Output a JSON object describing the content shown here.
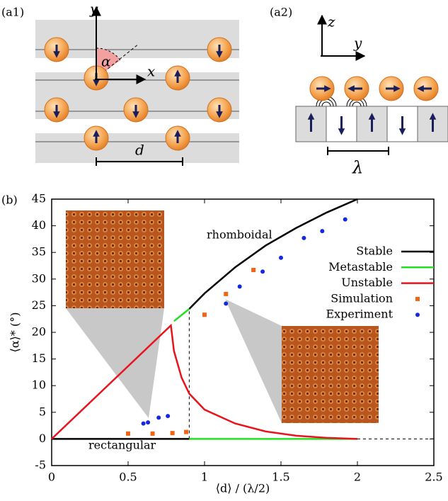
{
  "panels": {
    "a1": {
      "label": "(a1)",
      "y_axis": "y",
      "x_axis": "x",
      "angle": "α",
      "spacing": "d"
    },
    "a2": {
      "label": "(a2)",
      "z_axis": "z",
      "y_axis": "y",
      "wavelength": "λ"
    }
  },
  "chart_data": {
    "type": "line",
    "panel_label": "(b)",
    "x_label": "⟨d⟩ / (λ/2)",
    "y_label": "⟨α⟩* (°)",
    "xlim": [
      0,
      2.5
    ],
    "xticks": [
      0,
      0.5,
      1,
      1.5,
      2,
      2.5
    ],
    "ylim": [
      -5,
      45
    ],
    "yticks": [
      -5,
      0,
      5,
      10,
      15,
      20,
      25,
      30,
      35,
      40,
      45
    ],
    "annotations": [
      "rhomboidal",
      "rectangular"
    ],
    "legend": "upper right",
    "series": [
      {
        "name": "Stable",
        "color": "#000000",
        "mode": "line",
        "x": [
          0,
          0.9,
          0.9,
          0.9,
          1.0,
          1.2,
          1.4,
          1.6,
          1.8,
          2.0
        ],
        "values": [
          0,
          0,
          null,
          24.4,
          27.3,
          32.2,
          36.3,
          39.6,
          42.5,
          45
        ]
      },
      {
        "name": "Metastable",
        "color": "#22e022",
        "mode": "line",
        "x": [
          0.8,
          0.9,
          0.9,
          0.9,
          2.0
        ],
        "values": [
          22.1,
          24.4,
          null,
          0,
          0
        ]
      },
      {
        "name": "Unstable",
        "color": "#e8141c",
        "mode": "line",
        "x": [
          0,
          0.78,
          0.8,
          0.85,
          0.9,
          1.0,
          1.2,
          1.4,
          1.6,
          1.8,
          2.0
        ],
        "values": [
          0,
          21.3,
          16.5,
          11.5,
          8.5,
          5.5,
          2.9,
          1.4,
          0.6,
          0.2,
          0
        ]
      },
      {
        "name": "Simulation",
        "color": "#f06414",
        "mode": "square",
        "x": [
          0.5,
          0.66,
          0.79,
          0.88,
          1.0,
          1.14,
          1.32
        ],
        "values": [
          1,
          1,
          1.1,
          1.3,
          23.3,
          27.2,
          31.7
        ]
      },
      {
        "name": "Experiment",
        "color": "#1428e0",
        "mode": "dot",
        "x": [
          0.6,
          0.63,
          0.7,
          0.76,
          1.14,
          1.23,
          1.38,
          1.5,
          1.65,
          1.77,
          1.92
        ],
        "values": [
          2.9,
          3.1,
          4,
          4.3,
          25.4,
          28.6,
          31.4,
          34,
          37.7,
          39,
          41.2
        ]
      }
    ],
    "guides": [
      {
        "x": [
          0.9,
          0.9
        ],
        "values": [
          0,
          24.4
        ]
      },
      {
        "x": [
          2.0,
          2.5
        ],
        "values": [
          0,
          0
        ]
      }
    ]
  }
}
